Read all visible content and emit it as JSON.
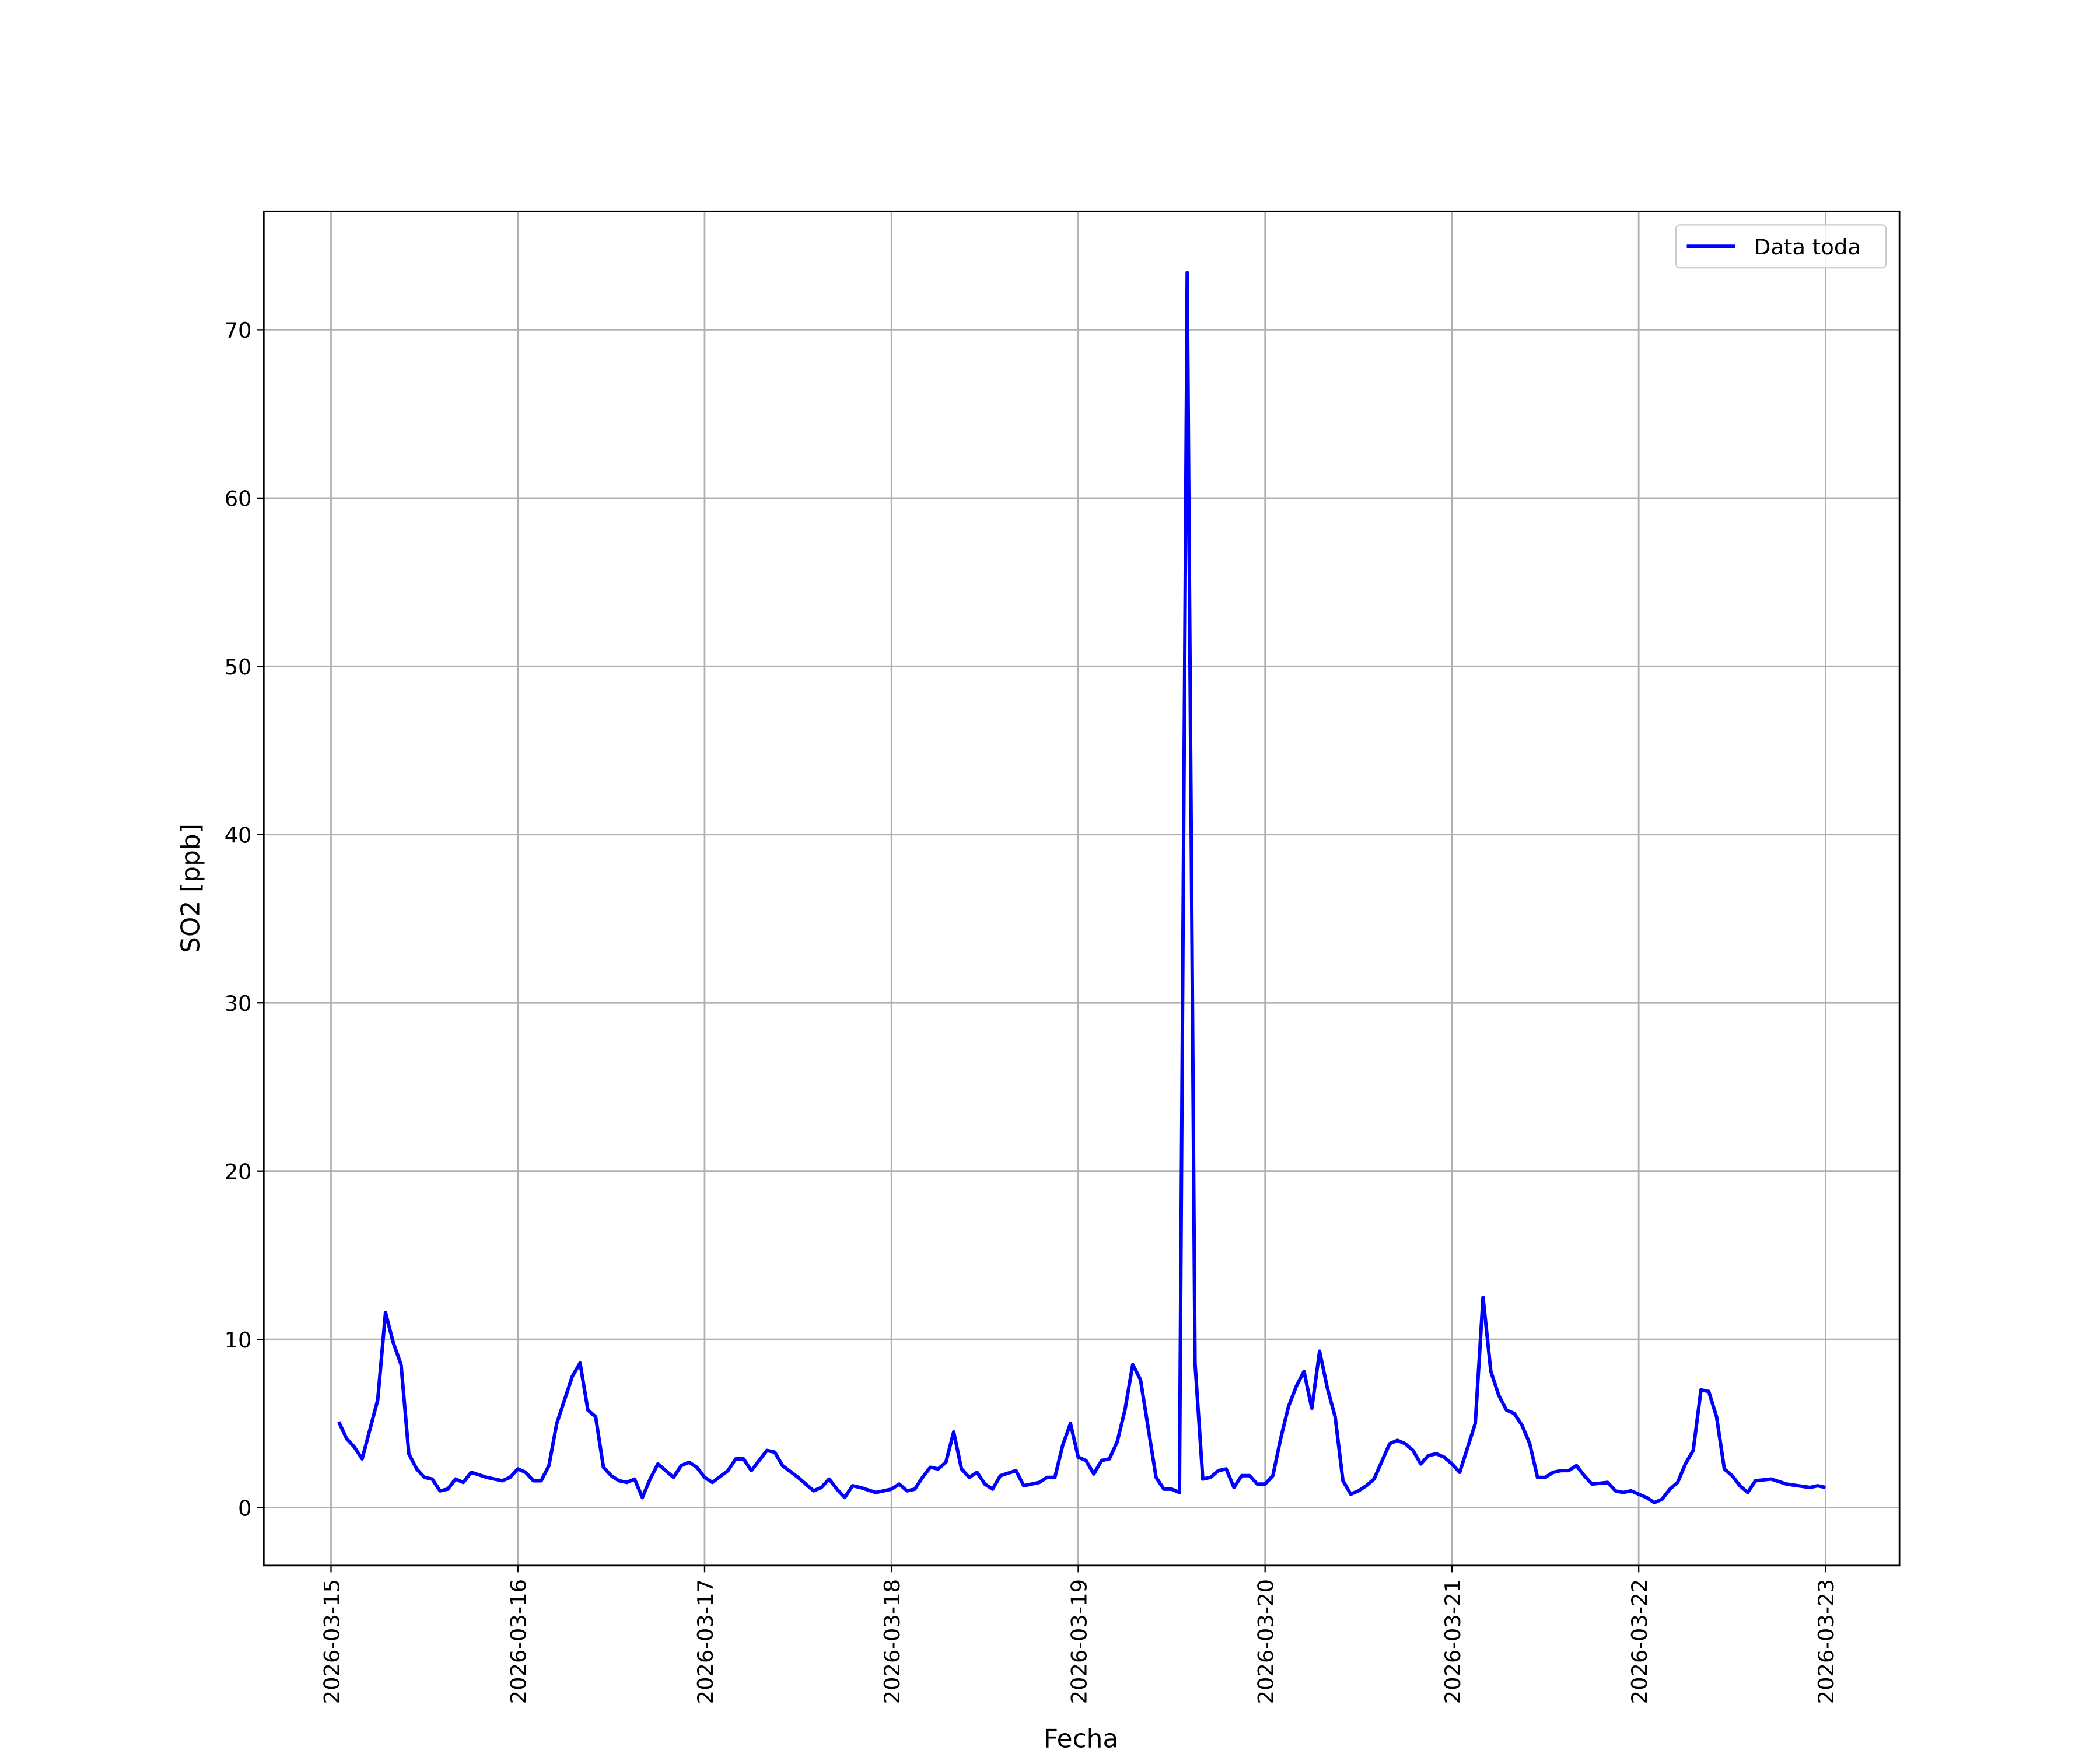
{
  "chart_data": {
    "type": "line",
    "xlabel": "Fecha",
    "ylabel": "SO2 [ppb]",
    "x": [
      "2026-03-15 01:00",
      "2026-03-15 02:00",
      "2026-03-15 03:00",
      "2026-03-15 04:00",
      "2026-03-15 06:00",
      "2026-03-15 07:00",
      "2026-03-15 08:00",
      "2026-03-15 09:00",
      "2026-03-15 10:00",
      "2026-03-15 11:00",
      "2026-03-15 12:00",
      "2026-03-15 13:00",
      "2026-03-15 14:00",
      "2026-03-15 15:00",
      "2026-03-15 16:00",
      "2026-03-15 17:00",
      "2026-03-15 18:00",
      "2026-03-15 20:00",
      "2026-03-15 22:00",
      "2026-03-15 23:00",
      "2026-03-16 00:00",
      "2026-03-16 01:00",
      "2026-03-16 02:00",
      "2026-03-16 03:00",
      "2026-03-16 04:00",
      "2026-03-16 05:00",
      "2026-03-16 06:00",
      "2026-03-16 07:00",
      "2026-03-16 08:00",
      "2026-03-16 09:00",
      "2026-03-16 10:00",
      "2026-03-16 11:00",
      "2026-03-16 12:00",
      "2026-03-16 13:00",
      "2026-03-16 14:00",
      "2026-03-16 15:00",
      "2026-03-16 16:00",
      "2026-03-16 17:00",
      "2026-03-16 18:00",
      "2026-03-16 20:00",
      "2026-03-16 21:00",
      "2026-03-16 22:00",
      "2026-03-16 23:00",
      "2026-03-17 00:00",
      "2026-03-17 01:00",
      "2026-03-17 03:00",
      "2026-03-17 04:00",
      "2026-03-17 05:00",
      "2026-03-17 06:00",
      "2026-03-17 08:00",
      "2026-03-17 09:00",
      "2026-03-17 10:00",
      "2026-03-17 12:00",
      "2026-03-17 13:00",
      "2026-03-17 14:00",
      "2026-03-17 15:00",
      "2026-03-17 16:00",
      "2026-03-17 17:00",
      "2026-03-17 18:00",
      "2026-03-17 19:00",
      "2026-03-17 20:00",
      "2026-03-17 22:00",
      "2026-03-17 23:00",
      "2026-03-18 00:00",
      "2026-03-18 01:00",
      "2026-03-18 02:00",
      "2026-03-18 03:00",
      "2026-03-18 04:00",
      "2026-03-18 05:00",
      "2026-03-18 06:00",
      "2026-03-18 07:00",
      "2026-03-18 08:00",
      "2026-03-18 09:00",
      "2026-03-18 10:00",
      "2026-03-18 11:00",
      "2026-03-18 12:00",
      "2026-03-18 13:00",
      "2026-03-18 14:00",
      "2026-03-18 16:00",
      "2026-03-18 17:00",
      "2026-03-18 19:00",
      "2026-03-18 20:00",
      "2026-03-18 21:00",
      "2026-03-18 22:00",
      "2026-03-18 23:00",
      "2026-03-19 00:00",
      "2026-03-19 01:00",
      "2026-03-19 02:00",
      "2026-03-19 03:00",
      "2026-03-19 04:00",
      "2026-03-19 05:00",
      "2026-03-19 06:00",
      "2026-03-19 07:00",
      "2026-03-19 08:00",
      "2026-03-19 09:00",
      "2026-03-19 10:00",
      "2026-03-19 11:00",
      "2026-03-19 12:00",
      "2026-03-19 13:00",
      "2026-03-19 14:00",
      "2026-03-19 15:00",
      "2026-03-19 16:00",
      "2026-03-19 17:00",
      "2026-03-19 18:00",
      "2026-03-19 19:00",
      "2026-03-19 20:00",
      "2026-03-19 21:00",
      "2026-03-19 22:00",
      "2026-03-19 23:00",
      "2026-03-20 00:00",
      "2026-03-20 01:00",
      "2026-03-20 02:00",
      "2026-03-20 03:00",
      "2026-03-20 04:00",
      "2026-03-20 05:00",
      "2026-03-20 06:00",
      "2026-03-20 07:00",
      "2026-03-20 08:00",
      "2026-03-20 09:00",
      "2026-03-20 10:00",
      "2026-03-20 11:00",
      "2026-03-20 12:00",
      "2026-03-20 13:00",
      "2026-03-20 14:00",
      "2026-03-20 16:00",
      "2026-03-20 17:00",
      "2026-03-20 18:00",
      "2026-03-20 19:00",
      "2026-03-20 20:00",
      "2026-03-20 21:00",
      "2026-03-20 22:00",
      "2026-03-20 23:00",
      "2026-03-21 00:00",
      "2026-03-21 01:00",
      "2026-03-21 03:00",
      "2026-03-21 04:00",
      "2026-03-21 05:00",
      "2026-03-21 06:00",
      "2026-03-21 07:00",
      "2026-03-21 08:00",
      "2026-03-21 09:00",
      "2026-03-21 10:00",
      "2026-03-21 11:00",
      "2026-03-21 12:00",
      "2026-03-21 13:00",
      "2026-03-21 14:00",
      "2026-03-21 15:00",
      "2026-03-21 16:00",
      "2026-03-21 17:00",
      "2026-03-21 18:00",
      "2026-03-21 20:00",
      "2026-03-21 21:00",
      "2026-03-21 22:00",
      "2026-03-21 23:00",
      "2026-03-22 00:00",
      "2026-03-22 01:00",
      "2026-03-22 02:00",
      "2026-03-22 03:00",
      "2026-03-22 04:00",
      "2026-03-22 05:00",
      "2026-03-22 06:00",
      "2026-03-22 07:00",
      "2026-03-22 08:00",
      "2026-03-22 09:00",
      "2026-03-22 10:00",
      "2026-03-22 11:00",
      "2026-03-22 12:00",
      "2026-03-22 13:00",
      "2026-03-22 14:00",
      "2026-03-22 15:00",
      "2026-03-22 17:00",
      "2026-03-22 19:00",
      "2026-03-22 22:00",
      "2026-03-22 23:00",
      "2026-03-23 00:00"
    ],
    "series": [
      {
        "name": "Data toda",
        "color": "#0000ff",
        "values": [
          5.1,
          4.1,
          3.6,
          2.9,
          6.4,
          11.6,
          9.8,
          8.5,
          3.2,
          2.3,
          1.8,
          1.7,
          1.0,
          1.1,
          1.7,
          1.5,
          2.1,
          1.8,
          1.6,
          1.8,
          2.3,
          2.1,
          1.6,
          1.6,
          2.5,
          5.0,
          6.4,
          7.8,
          8.6,
          5.8,
          5.4,
          2.4,
          1.9,
          1.6,
          1.5,
          1.7,
          0.6,
          1.7,
          2.6,
          1.8,
          2.5,
          2.7,
          2.4,
          1.8,
          1.5,
          2.2,
          2.9,
          2.9,
          2.2,
          3.4,
          3.3,
          2.5,
          1.8,
          1.4,
          1.0,
          1.2,
          1.7,
          1.1,
          0.6,
          1.3,
          1.2,
          0.9,
          1.0,
          1.1,
          1.4,
          1.0,
          1.1,
          1.8,
          2.4,
          2.3,
          2.7,
          4.5,
          2.3,
          1.8,
          2.1,
          1.4,
          1.1,
          1.9,
          2.2,
          1.3,
          1.5,
          1.8,
          1.8,
          3.7,
          5.0,
          3.0,
          2.8,
          2.0,
          2.8,
          2.9,
          3.9,
          5.8,
          8.5,
          7.6,
          4.7,
          1.8,
          1.1,
          1.1,
          0.9,
          73.4,
          8.6,
          1.7,
          1.8,
          2.2,
          2.3,
          1.2,
          1.9,
          1.9,
          1.4,
          1.4,
          1.9,
          4.1,
          6.0,
          7.2,
          8.1,
          5.9,
          9.3,
          7.1,
          5.4,
          1.6,
          0.8,
          1.0,
          1.3,
          1.7,
          3.8,
          4.0,
          3.8,
          3.4,
          2.6,
          3.1,
          3.2,
          3.0,
          2.6,
          2.1,
          5.0,
          12.5,
          8.1,
          6.7,
          5.8,
          5.6,
          4.9,
          3.8,
          1.8,
          1.8,
          2.1,
          2.2,
          2.2,
          2.5,
          1.9,
          1.4,
          1.5,
          1.0,
          0.9,
          1.0,
          0.8,
          0.6,
          0.3,
          0.5,
          1.1,
          1.5,
          2.6,
          3.4,
          7.0,
          6.9,
          5.4,
          2.3,
          1.9,
          1.3,
          0.9,
          1.6,
          1.7,
          1.4,
          1.2,
          1.3,
          1.2
        ]
      }
    ],
    "xlim": [
      "2026-03-14 15:22",
      "2026-03-23 09:30"
    ],
    "xticks": [
      "2026-03-15",
      "2026-03-16",
      "2026-03-17",
      "2026-03-18",
      "2026-03-19",
      "2026-03-20",
      "2026-03-21",
      "2026-03-22",
      "2026-03-23"
    ],
    "ylim": [
      -3.44,
      77.04
    ],
    "yticks": [
      0,
      10,
      20,
      30,
      40,
      50,
      60,
      70
    ],
    "grid": true,
    "legend": "upper right"
  }
}
